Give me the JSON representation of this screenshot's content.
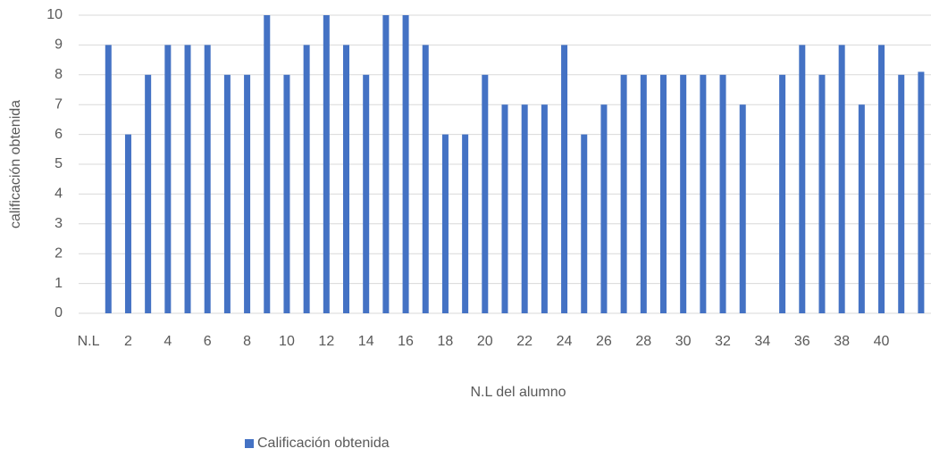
{
  "chart_data": {
    "type": "bar",
    "x_label": "N.L del alumno",
    "y_label": "calificación obtenida",
    "categories": [
      "N.L",
      null,
      "2",
      null,
      "4",
      null,
      "6",
      null,
      "8",
      null,
      "10",
      null,
      "12",
      null,
      "14",
      null,
      "16",
      null,
      "18",
      null,
      "20",
      null,
      "22",
      null,
      "24",
      null,
      "26",
      null,
      "28",
      null,
      "30",
      null,
      "32",
      null,
      "34",
      null,
      "36",
      null,
      "38",
      null,
      "40",
      null,
      null
    ],
    "series": [
      {
        "name": "Calificación obtenida",
        "color": "#4472c4",
        "values": [
          null,
          9,
          6,
          8,
          9,
          9,
          9,
          8,
          8,
          10,
          8,
          9,
          10,
          9,
          8,
          10,
          10,
          9,
          6,
          6,
          8,
          7,
          7,
          7,
          9,
          6,
          7,
          8,
          8,
          8,
          8,
          8,
          8,
          7,
          null,
          8,
          9,
          8,
          9,
          7,
          9,
          8,
          8.1
        ]
      }
    ],
    "ylim": [
      0,
      10
    ],
    "yticks": [
      0,
      1,
      2,
      3,
      4,
      5,
      6,
      7,
      8,
      9,
      10
    ],
    "grid": true,
    "legend": "bottom"
  }
}
